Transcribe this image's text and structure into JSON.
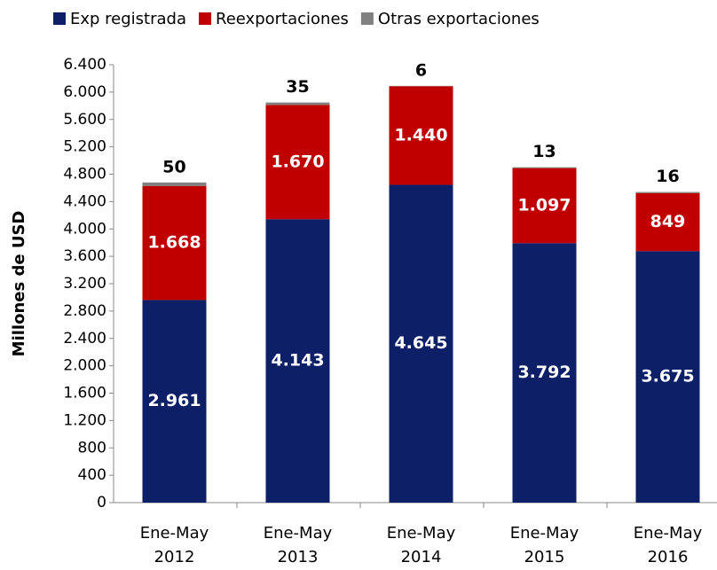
{
  "chart_data": {
    "type": "stacked_bar",
    "y_label": "Millones de USD",
    "categories": [
      "Ene-May 2012",
      "Ene-May 2013",
      "Ene-May 2014",
      "Ene-May 2015",
      "Ene-May 2016"
    ],
    "series": [
      {
        "name": "Exp registrada",
        "color": "#0d1f66",
        "values": [
          2961,
          4143,
          4645,
          3792,
          3675
        ],
        "value_labels": [
          "2.961",
          "4.143",
          "4.645",
          "3.792",
          "3.675"
        ]
      },
      {
        "name": "Reexportaciones",
        "color": "#c00000",
        "values": [
          1668,
          1670,
          1440,
          1097,
          849
        ],
        "value_labels": [
          "1.668",
          "1.670",
          "1.440",
          "1.097",
          "849"
        ]
      },
      {
        "name": "Otras exportaciones",
        "color": "#808080",
        "values": [
          50,
          35,
          6,
          13,
          16
        ]
      }
    ],
    "ylim": [
      0,
      6400
    ],
    "yticks": [
      0,
      400,
      800,
      {
        "value": 1200,
        "label": "1.200"
      },
      {
        "value": 1600,
        "label": "1.600"
      },
      {
        "value": 2000,
        "label": "2.000"
      },
      {
        "value": 2400,
        "label": "2.400"
      },
      {
        "value": 2800,
        "label": "2.800"
      },
      {
        "value": 3200,
        "label": "3.200"
      },
      {
        "value": 3600,
        "label": "3.600"
      },
      {
        "value": 4000,
        "label": "4.000"
      },
      {
        "value": 4400,
        "label": "4.400"
      },
      {
        "value": 4800,
        "label": "4.800"
      },
      {
        "value": 5200,
        "label": "5.200"
      },
      {
        "value": 5600,
        "label": "5.600"
      },
      {
        "value": 6000,
        "label": "6.000"
      },
      {
        "value": 6400,
        "label": "6.400"
      }
    ],
    "legend": "top"
  }
}
